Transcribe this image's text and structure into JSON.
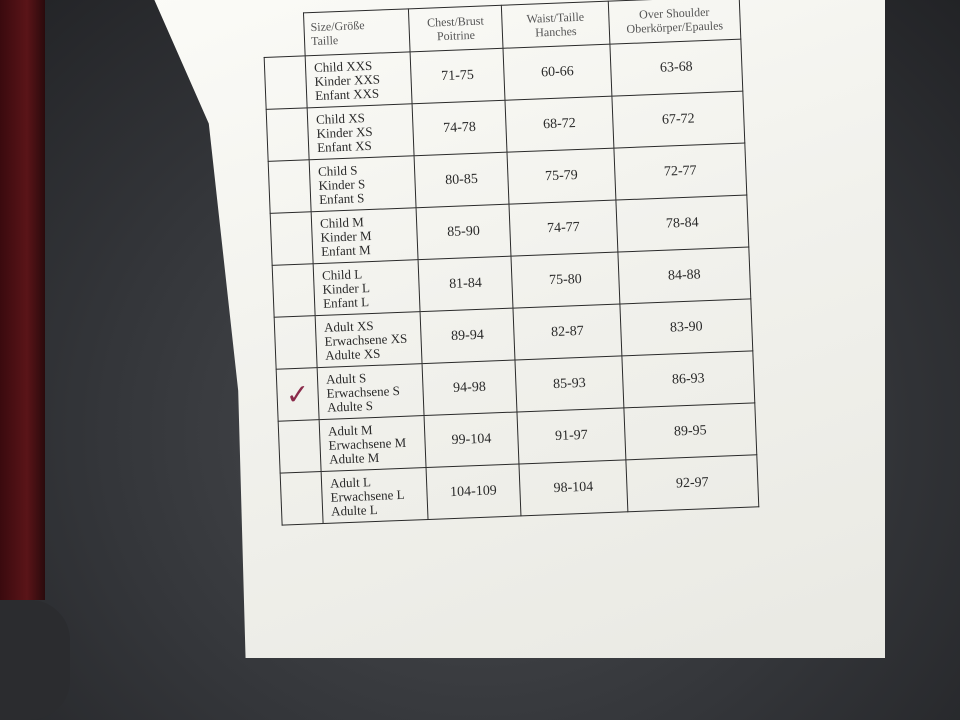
{
  "headers": {
    "size": [
      "Size/Größe",
      "Taille"
    ],
    "chest": [
      "Chest/Brust",
      "Poitrine"
    ],
    "waist": [
      "Waist/Taille",
      "Hanches"
    ],
    "shoulder": [
      "Over Shoulder",
      "Oberkörper/Epaules"
    ]
  },
  "check_mark_icon": "checkmark-icon",
  "check_color": "#8a2a4a",
  "rows": [
    {
      "size": [
        "Child XXS",
        "Kinder XXS",
        "Enfant XXS"
      ],
      "chest": "71-75",
      "waist": "60-66",
      "shoulder": "63-68",
      "checked": false
    },
    {
      "size": [
        "Child XS",
        "Kinder XS",
        "Enfant XS"
      ],
      "chest": "74-78",
      "waist": "68-72",
      "shoulder": "67-72",
      "checked": false
    },
    {
      "size": [
        "Child S",
        "Kinder S",
        "Enfant S"
      ],
      "chest": "80-85",
      "waist": "75-79",
      "shoulder": "72-77",
      "checked": false
    },
    {
      "size": [
        "Child M",
        "Kinder M",
        "Enfant M"
      ],
      "chest": "85-90",
      "waist": "74-77",
      "shoulder": "78-84",
      "checked": false
    },
    {
      "size": [
        "Child L",
        "Kinder L",
        "Enfant L"
      ],
      "chest": "81-84",
      "waist": "75-80",
      "shoulder": "84-88",
      "checked": false
    },
    {
      "size": [
        "Adult XS",
        "Erwachsene XS",
        "Adulte XS"
      ],
      "chest": "89-94",
      "waist": "82-87",
      "shoulder": "83-90",
      "checked": false
    },
    {
      "size": [
        "Adult S",
        "Erwachsene S",
        "Adulte S"
      ],
      "chest": "94-98",
      "waist": "85-93",
      "shoulder": "86-93",
      "checked": true
    },
    {
      "size": [
        "Adult M",
        "Erwachsene M",
        "Adulte M"
      ],
      "chest": "99-104",
      "waist": "91-97",
      "shoulder": "89-95",
      "checked": false
    },
    {
      "size": [
        "Adult L",
        "Erwachsene L",
        "Adulte L"
      ],
      "chest": "104-109",
      "waist": "98-104",
      "shoulder": "92-97",
      "checked": false
    }
  ]
}
